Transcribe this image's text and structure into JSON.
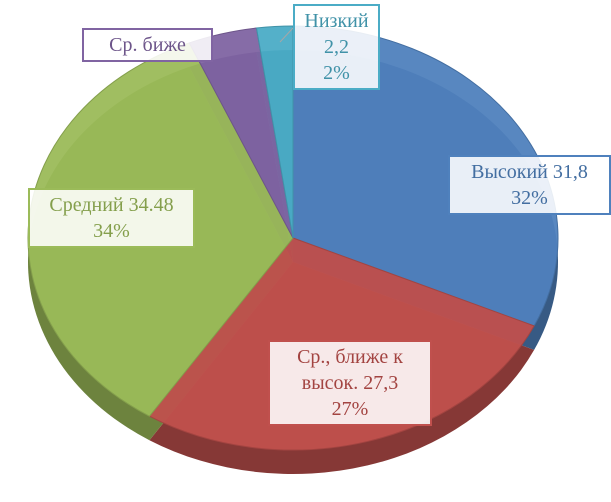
{
  "chart_data": {
    "type": "pie",
    "categories": [
      "Высокий",
      "Ср., ближе к высок.",
      "Средний",
      "Ср. биже",
      "Низкий"
    ],
    "values": [
      31.8,
      27.3,
      34.48,
      4.2,
      2.2
    ],
    "value_labels": [
      "31,8",
      "27,3",
      "34.48",
      null,
      "2,2"
    ],
    "percent_labels": [
      "32%",
      "27%",
      "34%",
      null,
      "2%"
    ],
    "colors": [
      "#4f81bd",
      "#c0504d",
      "#9bbb59",
      "#8064a2",
      "#4bacc6"
    ]
  }
}
